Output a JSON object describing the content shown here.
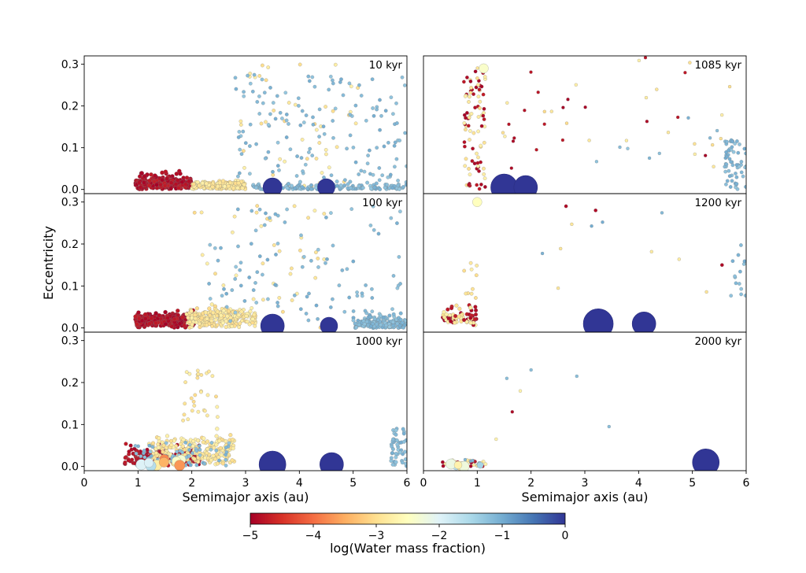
{
  "chart_data": {
    "type": "scatter",
    "ylabel": "Eccentricity",
    "xlabel": "Semimajor axis (au)",
    "xlim": [
      0,
      6
    ],
    "ylim": [
      -0.01,
      0.32
    ],
    "xticks": [
      "0",
      "1",
      "2",
      "3",
      "4",
      "5",
      "6"
    ],
    "yticks": [
      "0.0",
      "0.1",
      "0.2",
      "0.3"
    ],
    "colorbar": {
      "label": "log(Water mass fraction)",
      "range": [
        -5,
        0
      ],
      "ticks": [
        "−5",
        "−4",
        "−3",
        "−2",
        "−1",
        "0"
      ],
      "colors": [
        "#a50026",
        "#d73027",
        "#f46d43",
        "#fdae61",
        "#fee090",
        "#ffffbf",
        "#e0f3f8",
        "#abd9e9",
        "#74add1",
        "#4575b4",
        "#313695"
      ]
    },
    "panels": [
      {
        "label": "10 kyr",
        "giants": [
          {
            "a": 3.5,
            "e": 0.005,
            "r": 12
          },
          {
            "a": 4.5,
            "e": 0.005,
            "r": 11
          }
        ]
      },
      {
        "label": "1085 kyr",
        "giants": [
          {
            "a": 1.5,
            "e": 0.005,
            "r": 17
          },
          {
            "a": 1.9,
            "e": 0.005,
            "r": 15
          }
        ]
      },
      {
        "label": "100 kyr",
        "giants": [
          {
            "a": 3.5,
            "e": 0.005,
            "r": 15
          },
          {
            "a": 4.55,
            "e": 0.005,
            "r": 11
          }
        ]
      },
      {
        "label": "1200 kyr",
        "giants": [
          {
            "a": 3.25,
            "e": 0.01,
            "r": 19
          },
          {
            "a": 4.1,
            "e": 0.01,
            "r": 15
          }
        ]
      },
      {
        "label": "1000 kyr",
        "giants": [
          {
            "a": 3.5,
            "e": 0.005,
            "r": 17
          },
          {
            "a": 4.6,
            "e": 0.005,
            "r": 15
          }
        ]
      },
      {
        "label": "2000 kyr",
        "giants": [
          {
            "a": 5.25,
            "e": 0.01,
            "r": 17
          }
        ]
      }
    ]
  }
}
